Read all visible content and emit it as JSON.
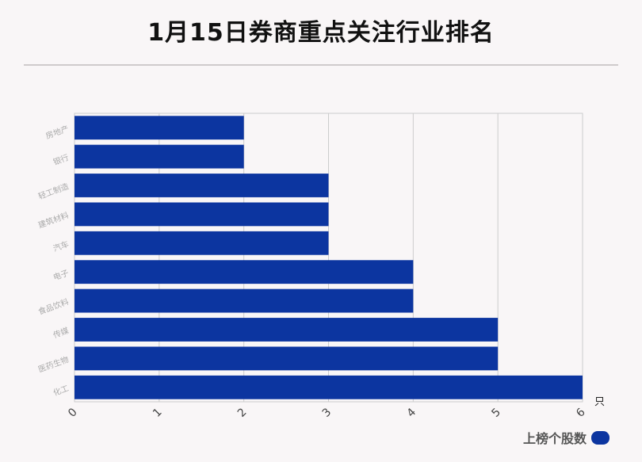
{
  "chart_data": {
    "type": "bar",
    "orientation": "horizontal",
    "title": "1月15日券商重点关注行业排名",
    "categories": [
      "房地产",
      "银行",
      "轻工制造",
      "建筑材料",
      "汽车",
      "电子",
      "食品饮料",
      "传媒",
      "医药生物",
      "化工"
    ],
    "series": [
      {
        "name": "上榜个股数",
        "values": [
          2,
          2,
          3,
          3,
          3,
          4,
          4,
          5,
          5,
          6
        ]
      }
    ],
    "x_unit": "只",
    "xlim": [
      0,
      6
    ],
    "x_ticks": [
      "0",
      "1",
      "2",
      "3",
      "4",
      "5",
      "6"
    ],
    "grid": true,
    "legend_position": "bottom-right",
    "bar_color": "#0c35a0"
  }
}
